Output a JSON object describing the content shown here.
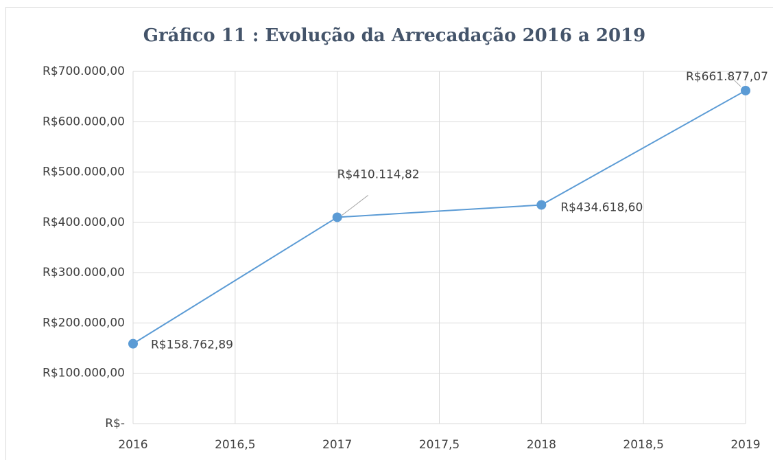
{
  "chart_data": {
    "type": "line",
    "title": "Gráfico 11 : Evolução da Arrecadação 2016 a 2019",
    "x": [
      2016,
      2017,
      2018,
      2019
    ],
    "series": [
      {
        "name": "Arrecadação",
        "color": "#5b9bd5",
        "values": [
          158762.89,
          410114.82,
          434618.6,
          661877.07
        ],
        "value_labels": [
          "R$158.762,89",
          "R$410.114,82",
          "R$434.618,60",
          "R$661.877,07"
        ]
      }
    ],
    "xlim": [
      2016,
      2019
    ],
    "xticks": [
      2016,
      {
        "value": 2016.5,
        "label": "2016,5"
      },
      2017,
      {
        "value": 2017.5,
        "label": "2017,5"
      },
      2018,
      {
        "value": 2018.5,
        "label": "2018,5"
      },
      2019
    ],
    "ylim": [
      0,
      700000
    ],
    "yticks": [
      {
        "value": 0,
        "label": "R$-"
      },
      {
        "value": 100000,
        "label": "R$100.000,00"
      },
      {
        "value": 200000,
        "label": "R$200.000,00"
      },
      {
        "value": 300000,
        "label": "R$300.000,00"
      },
      {
        "value": 400000,
        "label": "R$400.000,00"
      },
      {
        "value": 500000,
        "label": "R$500.000,00"
      },
      {
        "value": 600000,
        "label": "R$600.000,00"
      },
      {
        "value": 700000,
        "label": "R$700.000,00"
      }
    ],
    "grid": true
  }
}
